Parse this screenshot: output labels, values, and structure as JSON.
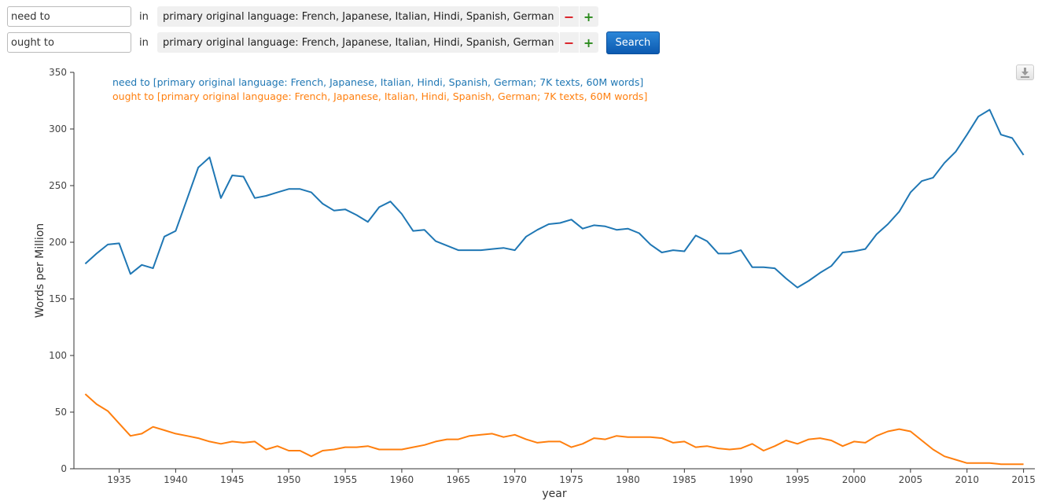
{
  "queries": [
    {
      "term": "need to",
      "in_label": "in",
      "corpus": "primary original language: French, Japanese, Italian, Hindi, Spanish, German",
      "minus_icon": "minus-icon",
      "plus_icon": "plus-icon"
    },
    {
      "term": "ought to",
      "in_label": "in",
      "corpus": "primary original language: French, Japanese, Italian, Hindi, Spanish, German",
      "minus_icon": "minus-icon",
      "plus_icon": "plus-icon"
    }
  ],
  "search_label": "Search",
  "download_icon": "download-icon",
  "chart_data": {
    "type": "line",
    "xlabel": "year",
    "ylabel": "Words per Million",
    "xlim": [
      1931,
      2016
    ],
    "ylim": [
      0,
      350
    ],
    "x_ticks": [
      1935,
      1940,
      1945,
      1950,
      1955,
      1960,
      1965,
      1970,
      1975,
      1980,
      1985,
      1990,
      1995,
      2000,
      2005,
      2010,
      2015
    ],
    "y_ticks": [
      0,
      50,
      100,
      150,
      200,
      250,
      300,
      350
    ],
    "grid": false,
    "legend_position": "top-left",
    "x": [
      1932,
      1933,
      1934,
      1935,
      1936,
      1937,
      1938,
      1939,
      1940,
      1941,
      1942,
      1943,
      1944,
      1945,
      1946,
      1947,
      1948,
      1949,
      1950,
      1951,
      1952,
      1953,
      1954,
      1955,
      1956,
      1957,
      1958,
      1959,
      1960,
      1961,
      1962,
      1963,
      1964,
      1965,
      1966,
      1967,
      1968,
      1969,
      1970,
      1971,
      1972,
      1973,
      1974,
      1975,
      1976,
      1977,
      1978,
      1979,
      1980,
      1981,
      1982,
      1983,
      1984,
      1985,
      1986,
      1987,
      1988,
      1989,
      1990,
      1991,
      1992,
      1993,
      1994,
      1995,
      1996,
      1997,
      1998,
      1999,
      2000,
      2001,
      2002,
      2003,
      2004,
      2005,
      2006,
      2007,
      2008,
      2009,
      2010,
      2011,
      2012,
      2013,
      2014,
      2015
    ],
    "series": [
      {
        "name": "need to [primary original language: French, Japanese, Italian, Hindi, Spanish, German; 7K texts, 60M words]",
        "color": "#1f77b4",
        "values": [
          181,
          190,
          198,
          199,
          172,
          180,
          177,
          205,
          210,
          238,
          266,
          275,
          239,
          259,
          258,
          239,
          241,
          244,
          247,
          247,
          244,
          234,
          228,
          229,
          224,
          218,
          231,
          236,
          225,
          210,
          211,
          201,
          197,
          193,
          193,
          193,
          194,
          195,
          193,
          205,
          211,
          216,
          217,
          220,
          212,
          215,
          214,
          211,
          212,
          208,
          198,
          191,
          193,
          192,
          206,
          201,
          190,
          190,
          193,
          178,
          178,
          177,
          168,
          160,
          166,
          173,
          179,
          191,
          192,
          194,
          207,
          216,
          227,
          244,
          254,
          257,
          270,
          280,
          295,
          311,
          317,
          295,
          292,
          277
        ]
      },
      {
        "name": "ought to [primary original language: French, Japanese, Italian, Hindi, Spanish, German; 7K texts, 60M words]",
        "color": "#ff7f0e",
        "values": [
          66,
          57,
          51,
          40,
          29,
          31,
          37,
          34,
          31,
          29,
          27,
          24,
          22,
          24,
          23,
          24,
          17,
          20,
          16,
          16,
          11,
          16,
          17,
          19,
          19,
          20,
          17,
          17,
          17,
          19,
          21,
          24,
          26,
          26,
          29,
          30,
          31,
          28,
          30,
          26,
          23,
          24,
          24,
          19,
          22,
          27,
          26,
          29,
          28,
          28,
          28,
          27,
          23,
          24,
          19,
          20,
          18,
          17,
          18,
          22,
          16,
          20,
          25,
          22,
          26,
          27,
          25,
          20,
          24,
          23,
          29,
          33,
          35,
          33,
          25,
          17,
          11,
          8,
          5,
          5,
          5,
          4,
          4,
          4
        ]
      }
    ]
  }
}
